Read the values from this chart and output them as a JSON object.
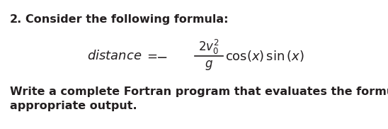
{
  "background_color": "#ffffff",
  "text_color": "#231f20",
  "number": "2.",
  "line1": "Consider the following formula:",
  "line2": "Write a complete Fortran program that evaluates the formula. Print out",
  "line3": "appropriate output.",
  "font_size_body": 11.5,
  "font_size_formula": 13.0,
  "fig_width": 5.48,
  "fig_height": 1.82,
  "dpi": 100
}
